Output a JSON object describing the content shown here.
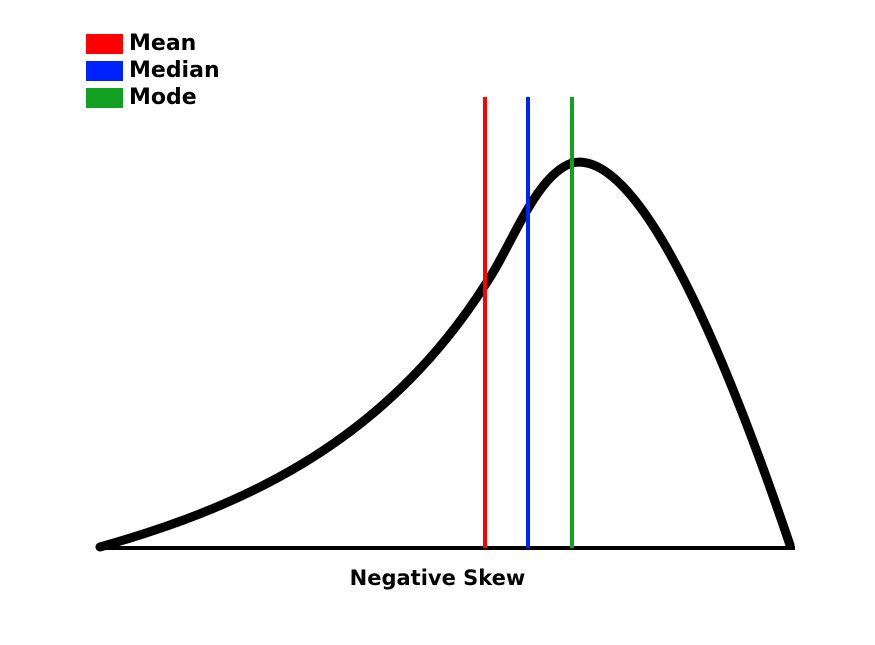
{
  "legend": [
    {
      "label": "Mean",
      "color": "#ff0000"
    },
    {
      "label": "Median",
      "color": "#0022ff"
    },
    {
      "label": "Mode",
      "color": "#11a022"
    }
  ],
  "caption": "Negative Skew",
  "colors": {
    "curve": "#000000",
    "baseline": "#000000"
  }
}
